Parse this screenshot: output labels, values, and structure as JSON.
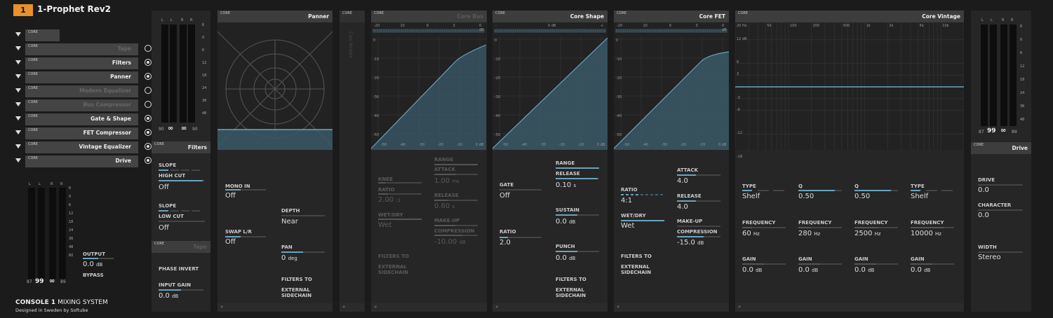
{
  "topbar": {
    "channel_number": "1",
    "title": "1-Prophet Rev2"
  },
  "logo_text": "CORE",
  "chain": [
    {
      "name": "",
      "bypass": null
    },
    {
      "name": "Tape",
      "active": false,
      "dim": true
    },
    {
      "name": "Filters",
      "active": true,
      "dim": false
    },
    {
      "name": "Panner",
      "active": true,
      "dim": false
    },
    {
      "name": "Modern Equalizer",
      "active": false,
      "dim": true
    },
    {
      "name": "Bus Compressor",
      "active": false,
      "dim": true
    },
    {
      "name": "Gate & Shape",
      "active": true,
      "dim": false
    },
    {
      "name": "FET Compressor",
      "active": true,
      "dim": false
    },
    {
      "name": "Vintage Equalizer",
      "active": true,
      "dim": false
    },
    {
      "name": "Drive",
      "active": true,
      "dim": false
    }
  ],
  "left_meter": {
    "channels": [
      "L",
      "L",
      "R",
      "R"
    ],
    "scale": [
      "6",
      "0",
      "6",
      "12",
      "18",
      "24",
      "36",
      "48",
      "60"
    ],
    "readout": [
      "87",
      "99",
      "∞",
      "89"
    ],
    "output_label": "OUTPUT",
    "output_value": "0.0",
    "output_unit": "dB",
    "bypass_label": "BYPASS"
  },
  "brand": {
    "name_bold": "CONSOLE 1",
    "name_rest": " MIXING SYSTEM",
    "tagline": "Designed in Sweden by Softube"
  },
  "input_meter": {
    "channels": [
      "L",
      "L",
      "R",
      "R"
    ],
    "scale": [
      "6",
      "0",
      "6",
      "12",
      "18",
      "24",
      "36",
      "48"
    ],
    "readout": [
      "90",
      "∞",
      "∞",
      "90"
    ]
  },
  "filters": {
    "title": "Filters",
    "slope1_label": "SLOPE",
    "highcut_label": "HIGH CUT",
    "highcut_value": "Off",
    "slope2_label": "SLOPE",
    "lowcut_label": "LOW CUT",
    "lowcut_value": "Off",
    "highcut_level": 0.95,
    "lowcut_level": 0.0
  },
  "tape": {
    "title": "Tape",
    "phase_label": "PHASE INVERT",
    "input_gain_label": "INPUT GAIN",
    "input_gain_value": "0.0",
    "input_gain_unit": "dB",
    "input_gain_level": 0.5
  },
  "panner": {
    "title": "Panner",
    "mono_label": "MONO IN",
    "mono_value": "Off",
    "depth_label": "DEPTH",
    "depth_value": "Near",
    "swap_label": "SWAP L/R",
    "swap_value": "Off",
    "pan_label": "PAN",
    "pan_value": "0",
    "pan_unit": "deg",
    "filters_to_label": "FILTERS TO",
    "sidechain_label": "EXTERNAL SIDECHAIN",
    "depth_level": 0.0,
    "pan_level": 0.5
  },
  "modern_eq": {
    "title": "Core Modern"
  },
  "bus_comp": {
    "title": "Core Bus",
    "gr_scale": [
      "-20",
      "10",
      "6",
      "3",
      "0 dB"
    ],
    "y_scale": [
      "0",
      "-10",
      "-20",
      "-30",
      "-40",
      "-50"
    ],
    "x_scale": [
      "-50",
      "-40",
      "-30",
      "-20",
      "-10",
      "0 dB"
    ],
    "knee_label": "KNEE",
    "ratio_label": "RATIO",
    "ratio_value": "2.00",
    "ratio_unit": ":1",
    "wetdry_label": "WET/DRY",
    "wetdry_value": "Wet",
    "range_label": "RANGE",
    "attack_label": "ATTACK",
    "attack_value": "1.00",
    "attack_unit": "ms",
    "release_label": "RELEASE",
    "release_value": "0.60",
    "release_unit": "s",
    "makeup_label": "MAKE-UP",
    "compression_label": "COMPRESSION",
    "compression_value": "-10.00",
    "compression_unit": "dB",
    "filters_to_label": "FILTERS TO",
    "sidechain_label": "EXTERNAL SIDECHAIN"
  },
  "shape": {
    "title": "Core Shape",
    "gr_scale": [
      "-",
      "0 dB",
      "+"
    ],
    "y_scale": [
      "0",
      "-10",
      "-20",
      "-30",
      "-40",
      "-50"
    ],
    "x_scale": [
      "-50",
      "-40",
      "-30",
      "-20",
      "-10",
      "0 dB"
    ],
    "gate_label": "GATE",
    "gate_value": "Off",
    "ratio_label": "RATIO",
    "ratio_value": "2.0",
    "range_label": "RANGE",
    "release_label": "RELEASE",
    "release_value": "0.10",
    "release_unit": "s",
    "sustain_label": "SUSTAIN",
    "sustain_value": "0.0",
    "sustain_unit": "dB",
    "punch_label": "PUNCH",
    "punch_value": "0.0",
    "punch_unit": "dB",
    "filters_to_label": "FILTERS TO",
    "sidechain_label": "EXTERNAL SIDECHAIN"
  },
  "fet": {
    "title": "Core FET",
    "gr_scale": [
      "-20",
      "10",
      "6",
      "3",
      "0 dB"
    ],
    "y_scale": [
      "0",
      "-10",
      "-20",
      "-30",
      "-40",
      "-50"
    ],
    "x_scale": [
      "-50",
      "-40",
      "-30",
      "-20",
      "-10",
      "0 dB"
    ],
    "ratio_label": "RATIO",
    "ratio_value": "4:1",
    "wetdry_label": "WET/DRY",
    "wetdry_value": "Wet",
    "attack_label": "ATTACK",
    "attack_value": "4.0",
    "release_label": "RELEASE",
    "release_value": "4.0",
    "makeup_label": "MAKE-UP",
    "compression_label": "COMPRESSION",
    "compression_value": "-15.0",
    "compression_unit": "dB",
    "filters_to_label": "FILTERS TO",
    "sidechain_label": "EXTERNAL SIDECHAIN"
  },
  "vintage_eq": {
    "title": "Core Vintage",
    "freq_scale": [
      "20 Hz",
      "50",
      "100",
      "200",
      "500",
      "1k",
      "2k",
      "5k",
      "10k"
    ],
    "gain_scale": [
      "12 dB",
      "6",
      "3",
      "-3",
      "-6",
      "-12",
      "-18"
    ],
    "bands": [
      {
        "type_label": "TYPE",
        "type_value": "Shelf",
        "freq_label": "FREQUENCY",
        "freq_value": "60",
        "freq_unit": "Hz",
        "gain_label": "GAIN",
        "gain_value": "0.0",
        "gain_unit": "dB"
      },
      {
        "type_label": "Q",
        "type_value": "0.50",
        "freq_label": "FREQUENCY",
        "freq_value": "280",
        "freq_unit": "Hz",
        "gain_label": "GAIN",
        "gain_value": "0.0",
        "gain_unit": "dB"
      },
      {
        "type_label": "Q",
        "type_value": "0.50",
        "freq_label": "FREQUENCY",
        "freq_value": "2500",
        "freq_unit": "Hz",
        "gain_label": "GAIN",
        "gain_value": "0.0",
        "gain_unit": "dB"
      },
      {
        "type_label": "TYPE",
        "type_value": "Shelf",
        "freq_label": "FREQUENCY",
        "freq_value": "10000",
        "freq_unit": "Hz",
        "gain_label": "GAIN",
        "gain_value": "0.0",
        "gain_unit": "dB"
      }
    ]
  },
  "output_meter": {
    "channels": [
      "L",
      "L",
      "R",
      "R"
    ],
    "scale": [
      "6",
      "0",
      "6",
      "12",
      "18",
      "24",
      "36",
      "48"
    ],
    "readout": [
      "87",
      "99",
      "∞",
      "89"
    ]
  },
  "drive": {
    "title": "Drive",
    "drive_label": "DRIVE",
    "drive_value": "0.0",
    "character_label": "CHARACTER",
    "character_value": "0.0",
    "width_label": "WIDTH",
    "width_value": "Stereo"
  },
  "colors": {
    "accent": "#e8902a",
    "eq_curve": "#6aa3bd",
    "graph_fill": "#3a5866"
  }
}
